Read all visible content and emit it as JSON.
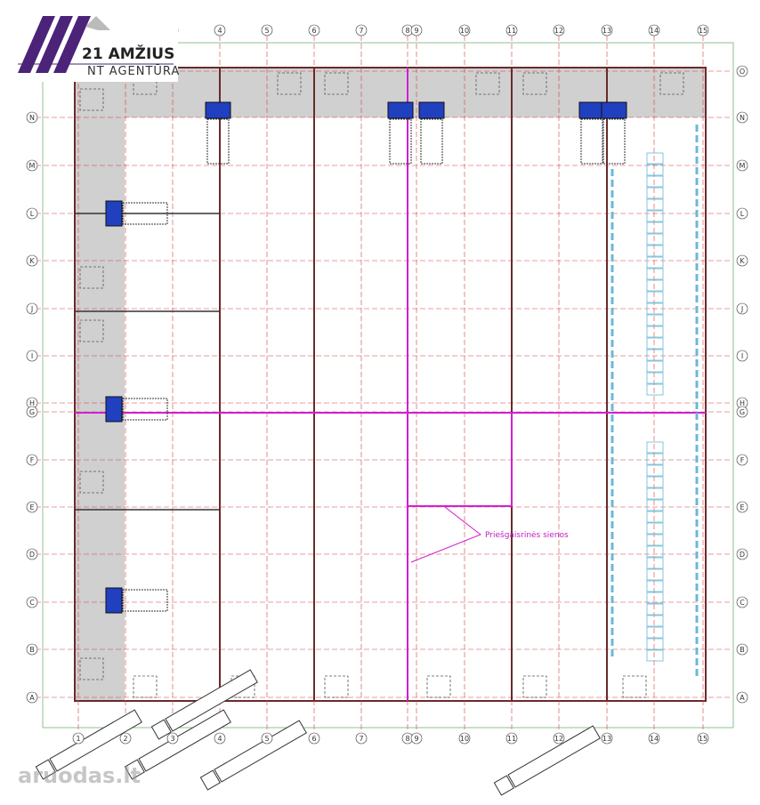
{
  "logo": {
    "title": "21 AMŽIUS",
    "subtitle": "NT AGENTŪRA"
  },
  "grid": {
    "columns": [
      "1",
      "2",
      "3",
      "4",
      "5",
      "6",
      "7",
      "8",
      "9",
      "10",
      "11",
      "12",
      "13",
      "14",
      "15"
    ],
    "rows": [
      "O",
      "N",
      "M",
      "L",
      "K",
      "J",
      "I",
      "H",
      "G",
      "F",
      "E",
      "D",
      "C",
      "B",
      "A"
    ]
  },
  "annotation": "Priešgaisrinės sienos",
  "watermark": "aruodas.lt"
}
